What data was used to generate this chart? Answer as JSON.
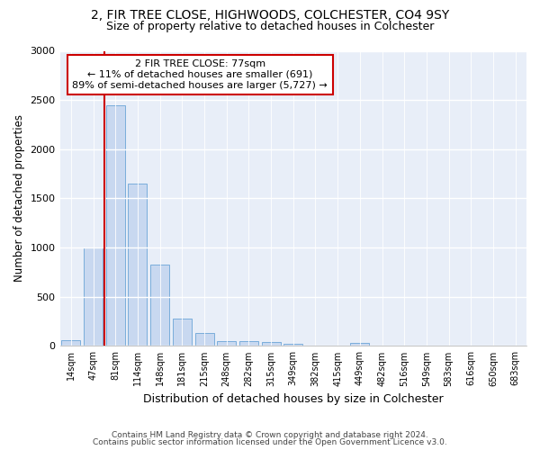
{
  "title1": "2, FIR TREE CLOSE, HIGHWOODS, COLCHESTER, CO4 9SY",
  "title2": "Size of property relative to detached houses in Colchester",
  "xlabel": "Distribution of detached houses by size in Colchester",
  "ylabel": "Number of detached properties",
  "footer1": "Contains HM Land Registry data © Crown copyright and database right 2024.",
  "footer2": "Contains public sector information licensed under the Open Government Licence v3.0.",
  "annotation_title": "2 FIR TREE CLOSE: 77sqm",
  "annotation_line1": "← 11% of detached houses are smaller (691)",
  "annotation_line2": "89% of semi-detached houses are larger (5,727) →",
  "bar_categories": [
    "14sqm",
    "47sqm",
    "81sqm",
    "114sqm",
    "148sqm",
    "181sqm",
    "215sqm",
    "248sqm",
    "282sqm",
    "315sqm",
    "349sqm",
    "382sqm",
    "415sqm",
    "449sqm",
    "482sqm",
    "516sqm",
    "549sqm",
    "583sqm",
    "616sqm",
    "650sqm",
    "683sqm"
  ],
  "bar_values": [
    60,
    1000,
    2450,
    1650,
    830,
    275,
    130,
    50,
    50,
    45,
    25,
    0,
    0,
    35,
    0,
    0,
    0,
    0,
    0,
    0,
    0
  ],
  "bar_color": "#c8d8f0",
  "bar_edge_color": "#7aaddb",
  "vline_color": "#cc0000",
  "annotation_box_color": "#cc0000",
  "background_color": "#e8eef8",
  "ylim": [
    0,
    3000
  ],
  "yticks": [
    0,
    500,
    1000,
    1500,
    2000,
    2500,
    3000
  ]
}
